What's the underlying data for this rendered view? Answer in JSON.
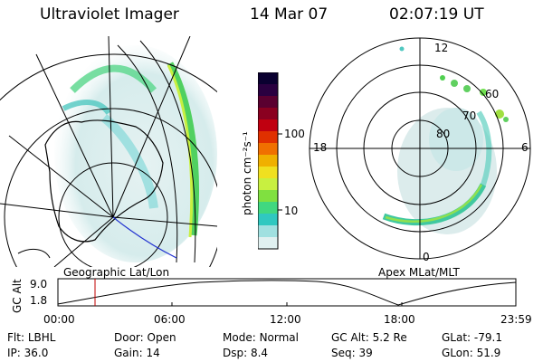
{
  "header": {
    "instrument": "Ultraviolet Imager",
    "date": "14 Mar 07",
    "time": "02:07:19 UT"
  },
  "colorbar": {
    "label": "photon cm⁻²s⁻¹",
    "ticks": [
      "100",
      "10"
    ],
    "colors": [
      "#0a0030",
      "#2a0040",
      "#5a0030",
      "#8a0020",
      "#c00010",
      "#e03000",
      "#f07000",
      "#f0b000",
      "#f0e020",
      "#c8f040",
      "#80e040",
      "#40d880",
      "#30c8c0",
      "#a0e0e0",
      "#e0f0f0"
    ]
  },
  "left_map": {
    "caption": "Geographic Lat/Lon"
  },
  "right_map": {
    "caption": "Apex MLat/MLT",
    "mlt_labels": {
      "top": "12",
      "right": "6",
      "bottom": "0",
      "left": "18"
    },
    "lat_labels": [
      "60",
      "70",
      "80"
    ]
  },
  "altitude_plot": {
    "ylabel": "GC Alt",
    "yticks": [
      "9.0",
      "1.8"
    ],
    "xticks": [
      "00:00",
      "06:00",
      "12:00",
      "18:00",
      "23:59"
    ],
    "marker_color": "#c00000"
  },
  "status": {
    "row1": [
      {
        "k": "Flt:",
        "v": "LBHL"
      },
      {
        "k": "Door:",
        "v": "Open"
      },
      {
        "k": "Mode:",
        "v": "Normal"
      },
      {
        "k": "GC Alt:",
        "v": "5.2 Re"
      },
      {
        "k": "GLat:",
        "v": "-79.1"
      }
    ],
    "row2": [
      {
        "k": "IP:",
        "v": "36.0"
      },
      {
        "k": "Gain:",
        "v": "14"
      },
      {
        "k": "Dsp:",
        "v": "8.4"
      },
      {
        "k": "Seq:",
        "v": "39"
      },
      {
        "k": "GLon:",
        "v": "51.9"
      }
    ]
  }
}
